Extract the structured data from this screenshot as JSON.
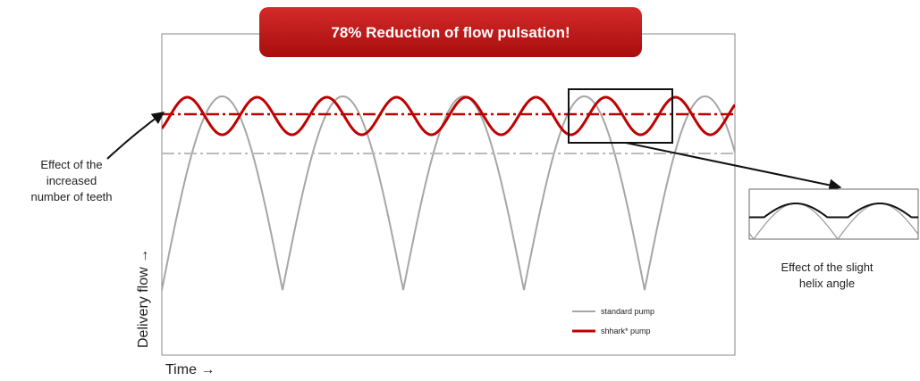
{
  "banner": "78% Reduction of flow pulsation!",
  "annotations": {
    "teeth": [
      "Effect of the",
      "increased",
      "number of teeth"
    ],
    "helix": [
      "Effect of the slight",
      "helix angle"
    ]
  },
  "axes": {
    "y": "Delivery flow →",
    "x": "Time →"
  },
  "legend": [
    "standard pump",
    "shhark* pump"
  ]
}
